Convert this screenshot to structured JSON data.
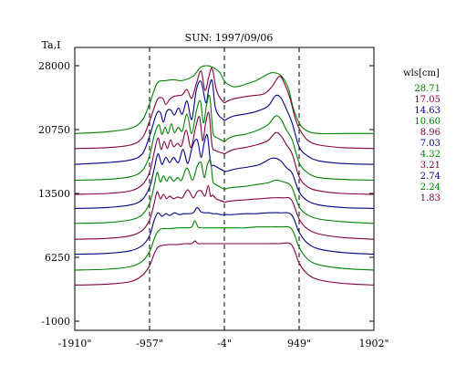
{
  "chart_data": {
    "type": "line",
    "title": "SUN: 1997/09/06",
    "ylabel": "Ta,I",
    "xlim": [
      -1910,
      1902
    ],
    "ylim": [
      -1000,
      30000
    ],
    "x_ticks": [
      {
        "value": -1910,
        "label": "-1910\""
      },
      {
        "value": -957,
        "label": "-957\""
      },
      {
        "value": -4,
        "label": "-4\""
      },
      {
        "value": 949,
        "label": "949\""
      },
      {
        "value": 1902,
        "label": "1902\""
      }
    ],
    "y_ticks": [
      {
        "value": -1000,
        "label": "-1000"
      },
      {
        "value": 6250,
        "label": "6250"
      },
      {
        "value": 13500,
        "label": "13500"
      },
      {
        "value": 20750,
        "label": "20750"
      },
      {
        "value": 28000,
        "label": "28000"
      }
    ],
    "vlines": [
      -957,
      -4,
      949
    ],
    "legend": {
      "title": "wls[cm]",
      "entries": [
        {
          "label": "28.71",
          "color": "#008000"
        },
        {
          "label": "17.05",
          "color": "#800040"
        },
        {
          "label": "14.63",
          "color": "#000080"
        },
        {
          "label": "10.60",
          "color": "#008000"
        },
        {
          "label": "8.96",
          "color": "#800040"
        },
        {
          "label": "7.03",
          "color": "#000080"
        },
        {
          "label": "4.32",
          "color": "#008000"
        },
        {
          "label": "3.21",
          "color": "#800040"
        },
        {
          "label": "2.74",
          "color": "#000080"
        },
        {
          "label": "2.24",
          "color": "#008000"
        },
        {
          "label": "1.83",
          "color": "#800040"
        }
      ]
    },
    "series": [
      {
        "name": "28.71",
        "color": "#008000",
        "x": [
          -1910,
          -1500,
          -1200,
          -1050,
          -957,
          -860,
          -760,
          -650,
          -560,
          -470,
          -390,
          -310,
          -240,
          -170,
          -110,
          -60,
          0,
          60,
          120,
          200,
          300,
          400,
          500,
          600,
          700,
          760,
          820,
          870,
          949,
          1050,
          1200,
          1500,
          1902
        ],
        "y": [
          20300,
          20500,
          20900,
          21800,
          23700,
          26000,
          26300,
          26400,
          26300,
          26500,
          26900,
          27800,
          28000,
          27900,
          27600,
          27200,
          26200,
          25800,
          25600,
          25700,
          26000,
          26300,
          26800,
          27200,
          27000,
          26400,
          25200,
          23300,
          21500,
          20600,
          20300,
          20300,
          20300
        ]
      },
      {
        "name": "17.05",
        "color": "#800040",
        "x": [
          -1910,
          -1500,
          -1200,
          -1050,
          -957,
          -860,
          -790,
          -750,
          -700,
          -650,
          -600,
          -540,
          -480,
          -420,
          -360,
          -300,
          -250,
          -200,
          -160,
          -110,
          -70,
          -30,
          0,
          40,
          100,
          200,
          350,
          500,
          600,
          700,
          770,
          840,
          890,
          949,
          1050,
          1200,
          1500,
          1902
        ],
        "y": [
          18600,
          18700,
          19000,
          19800,
          21700,
          24100,
          24300,
          23600,
          24200,
          24500,
          24600,
          24700,
          25300,
          24300,
          26000,
          27400,
          25200,
          26800,
          27700,
          25400,
          24500,
          24000,
          23800,
          24000,
          24200,
          24400,
          24600,
          24800,
          25600,
          26800,
          25800,
          24100,
          22300,
          20900,
          19600,
          19000,
          18700,
          18600
        ]
      },
      {
        "name": "14.63",
        "color": "#000080",
        "x": [
          -1910,
          -1500,
          -1200,
          -1050,
          -957,
          -870,
          -820,
          -780,
          -740,
          -690,
          -640,
          -590,
          -540,
          -480,
          -420,
          -360,
          -300,
          -240,
          -200,
          -160,
          -120,
          -70,
          -30,
          0,
          40,
          120,
          250,
          400,
          550,
          650,
          720,
          790,
          860,
          949,
          1050,
          1200,
          1500,
          1902
        ],
        "y": [
          16800,
          17000,
          17300,
          18000,
          20000,
          22500,
          22700,
          21600,
          22800,
          23000,
          22400,
          23200,
          22500,
          24000,
          21900,
          25300,
          26200,
          23800,
          25500,
          26300,
          23300,
          22300,
          22000,
          21800,
          22000,
          22300,
          22500,
          22800,
          23400,
          24600,
          24300,
          23000,
          21500,
          18800,
          17800,
          17200,
          16900,
          16800
        ]
      },
      {
        "name": "10.60",
        "color": "#008000",
        "x": [
          -1910,
          -1500,
          -1200,
          -1050,
          -957,
          -900,
          -840,
          -800,
          -760,
          -720,
          -680,
          -640,
          -590,
          -540,
          -480,
          -420,
          -360,
          -310,
          -270,
          -230,
          -190,
          -150,
          -110,
          -70,
          -30,
          0,
          40,
          120,
          250,
          400,
          550,
          650,
          720,
          780,
          860,
          949,
          1050,
          1200,
          1500,
          1902
        ],
        "y": [
          15000,
          15100,
          15400,
          16100,
          17800,
          20000,
          21300,
          20200,
          21000,
          20300,
          21400,
          20400,
          21000,
          20600,
          22500,
          20300,
          22900,
          24000,
          21500,
          23600,
          24500,
          20500,
          19900,
          19700,
          19500,
          19400,
          19700,
          20000,
          20200,
          20600,
          21300,
          22300,
          21900,
          20800,
          19600,
          17000,
          15900,
          15300,
          15100,
          15000
        ]
      },
      {
        "name": "8.96",
        "color": "#800040",
        "x": [
          -1910,
          -1500,
          -1200,
          -1050,
          -957,
          -900,
          -850,
          -810,
          -770,
          -730,
          -690,
          -650,
          -600,
          -550,
          -490,
          -430,
          -370,
          -320,
          -280,
          -240,
          -200,
          -160,
          -120,
          -70,
          -30,
          0,
          40,
          120,
          250,
          400,
          550,
          650,
          720,
          790,
          860,
          949,
          1050,
          1200,
          1500,
          1902
        ],
        "y": [
          13400,
          13500,
          13800,
          14500,
          15900,
          18100,
          19800,
          18500,
          19400,
          18600,
          19600,
          18800,
          19200,
          18900,
          20700,
          18700,
          21000,
          22200,
          19500,
          21600,
          22600,
          18900,
          18400,
          18200,
          18100,
          18000,
          18200,
          18500,
          18700,
          19000,
          19500,
          20400,
          20000,
          19000,
          18000,
          15400,
          14300,
          13800,
          13500,
          13400
        ]
      },
      {
        "name": "7.03",
        "color": "#000080",
        "x": [
          -1910,
          -1500,
          -1200,
          -1050,
          -957,
          -900,
          -850,
          -800,
          -750,
          -700,
          -650,
          -590,
          -530,
          -470,
          -410,
          -350,
          -300,
          -260,
          -220,
          -180,
          -140,
          -100,
          -60,
          -20,
          10,
          60,
          150,
          300,
          450,
          600,
          700,
          790,
          860,
          949,
          1050,
          1200,
          1500,
          1902
        ],
        "y": [
          11800,
          11900,
          12200,
          12800,
          14200,
          16200,
          18000,
          16800,
          17600,
          17000,
          17600,
          17000,
          18500,
          16900,
          18900,
          19600,
          17600,
          19300,
          20100,
          17000,
          16700,
          16500,
          16300,
          16100,
          16000,
          16100,
          16300,
          16500,
          16800,
          17500,
          17300,
          16400,
          15800,
          13700,
          12700,
          12200,
          11900,
          11800
        ]
      },
      {
        "name": "4.32",
        "color": "#008000",
        "x": [
          -1910,
          -1500,
          -1200,
          -1050,
          -957,
          -900,
          -860,
          -820,
          -780,
          -740,
          -700,
          -650,
          -600,
          -550,
          -480,
          -410,
          -350,
          -300,
          -260,
          -220,
          -180,
          -150,
          -110,
          -70,
          -30,
          0,
          40,
          120,
          250,
          400,
          550,
          650,
          750,
          850,
          949,
          1050,
          1200,
          1500,
          1902
        ],
        "y": [
          10100,
          10200,
          10500,
          11100,
          12400,
          14300,
          15900,
          14800,
          15500,
          14900,
          15400,
          14900,
          15300,
          15000,
          16400,
          15000,
          16600,
          17000,
          15300,
          16800,
          17200,
          14900,
          14500,
          14300,
          14100,
          14000,
          14100,
          14200,
          14300,
          14500,
          14700,
          15000,
          14800,
          14300,
          12000,
          11100,
          10600,
          10300,
          10100
        ]
      },
      {
        "name": "3.21",
        "color": "#800040",
        "x": [
          -1910,
          -1500,
          -1200,
          -1050,
          -957,
          -900,
          -860,
          -820,
          -780,
          -740,
          -700,
          -650,
          -600,
          -540,
          -470,
          -400,
          -350,
          -300,
          -250,
          -210,
          -180,
          -150,
          -110,
          -60,
          -20,
          0,
          40,
          150,
          300,
          450,
          600,
          750,
          850,
          949,
          1050,
          1200,
          1500,
          1902
        ],
        "y": [
          8300,
          8400,
          8700,
          9300,
          10500,
          12300,
          13700,
          12900,
          13400,
          12900,
          13200,
          12900,
          13100,
          13000,
          13900,
          13000,
          13700,
          13800,
          13200,
          14400,
          13200,
          13300,
          12900,
          12700,
          12600,
          12500,
          12600,
          12700,
          12800,
          12900,
          13000,
          13000,
          12800,
          10600,
          9500,
          8900,
          8500,
          8300
        ]
      },
      {
        "name": "2.74",
        "color": "#000080",
        "x": [
          -1910,
          -1500,
          -1200,
          -1050,
          -957,
          -900,
          -850,
          -800,
          -750,
          -700,
          -640,
          -580,
          -520,
          -460,
          -400,
          -350,
          -300,
          -250,
          -200,
          -150,
          -100,
          -50,
          0,
          100,
          250,
          400,
          550,
          700,
          850,
          949,
          1050,
          1200,
          1500,
          1902
        ],
        "y": [
          6600,
          6700,
          7000,
          7600,
          8700,
          10400,
          11300,
          10900,
          11200,
          11000,
          11300,
          11100,
          11200,
          11200,
          11300,
          11900,
          11400,
          11300,
          11300,
          11200,
          11200,
          11100,
          11100,
          11100,
          11200,
          11200,
          11300,
          11300,
          11100,
          9100,
          7900,
          7200,
          6800,
          6600
        ]
      },
      {
        "name": "2.24",
        "color": "#008000",
        "x": [
          -1910,
          -1500,
          -1200,
          -1050,
          -957,
          -900,
          -850,
          -800,
          -700,
          -600,
          -500,
          -420,
          -380,
          -340,
          -300,
          -200,
          -100,
          0,
          100,
          250,
          400,
          550,
          700,
          850,
          949,
          1050,
          1200,
          1500,
          1902
        ],
        "y": [
          4800,
          4900,
          5200,
          5800,
          6900,
          8300,
          9200,
          9500,
          9500,
          9600,
          9600,
          9700,
          10400,
          9700,
          9600,
          9600,
          9600,
          9600,
          9600,
          9600,
          9700,
          9700,
          9700,
          9500,
          7400,
          6100,
          5400,
          5000,
          4800
        ]
      },
      {
        "name": "1.83",
        "color": "#800040",
        "x": [
          -1910,
          -1500,
          -1200,
          -1050,
          -957,
          -900,
          -850,
          -800,
          -700,
          -600,
          -500,
          -420,
          -380,
          -340,
          -300,
          -200,
          -100,
          0,
          100,
          250,
          400,
          550,
          700,
          850,
          949,
          1050,
          1200,
          1500,
          1902
        ],
        "y": [
          3100,
          3200,
          3500,
          4200,
          5300,
          6600,
          7400,
          7600,
          7700,
          7700,
          7800,
          7800,
          8100,
          7800,
          7800,
          7800,
          7800,
          7800,
          7800,
          7800,
          7800,
          7800,
          7800,
          7700,
          5600,
          4400,
          3700,
          3300,
          3100
        ]
      }
    ]
  }
}
